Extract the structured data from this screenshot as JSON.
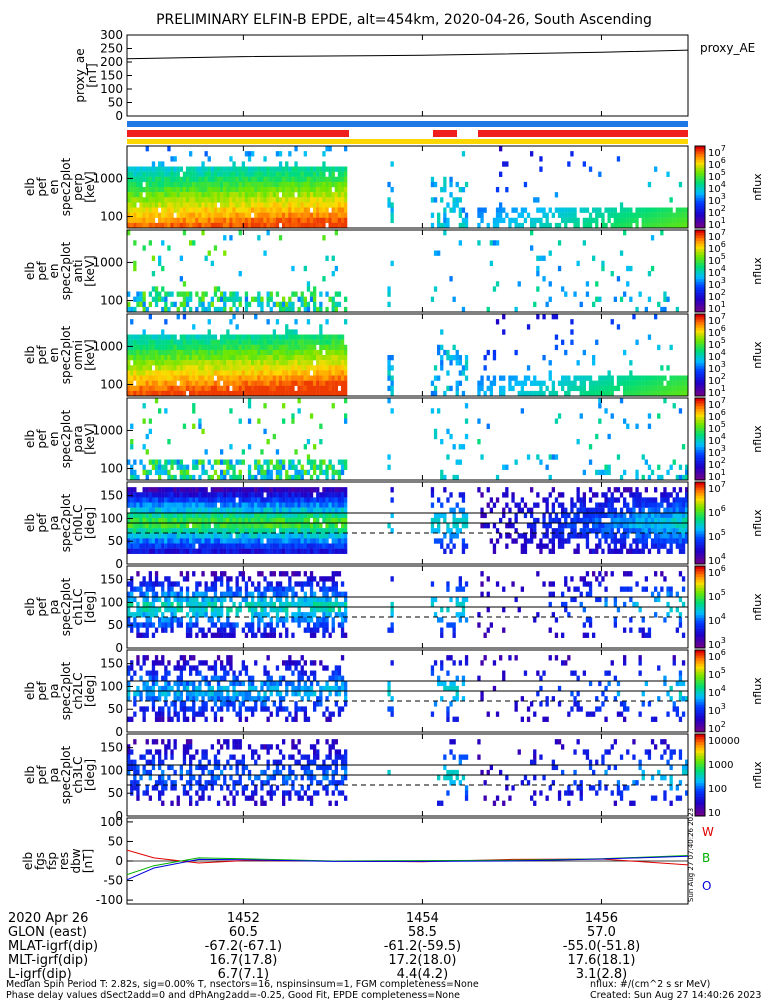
{
  "title": "PRELIMINARY ELFIN-B EPDE, alt=454km, 2020-04-26, South Ascending",
  "colors": {
    "bar_blue": "#1e78e6",
    "bar_red": "#f01e1e",
    "bar_yellow": "#ffd700",
    "trace_red": "#e00000",
    "trace_green": "#00b000",
    "trace_blue": "#0000e0"
  },
  "chart_data": [
    {
      "type": "line",
      "panel": "proxy_ae",
      "ylabel_lines": [
        "proxy_ae",
        "[nT]"
      ],
      "ylim": [
        0,
        300
      ],
      "yticks": [
        "300",
        "250",
        "200",
        "150",
        "100",
        "50",
        "0"
      ],
      "legend": "proxy_AE",
      "x": [
        "14:50:42",
        "14:52:00",
        "14:54:00",
        "14:56:00",
        "14:56:58"
      ],
      "y": [
        212,
        220,
        225,
        236,
        244
      ]
    },
    {
      "type": "heatmap",
      "panel": "pef_en_perp",
      "ylabel_lines": [
        "elb",
        "pef",
        "en",
        "spec2plot",
        "perp",
        "[keV]"
      ],
      "yscale": "log",
      "ytick_labels": [
        "1000",
        "100"
      ],
      "colorbar": {
        "label": "nflux",
        "ticks": [
          "10^7",
          "10^6",
          "10^5",
          "10^4",
          "10^3",
          "10^2",
          "10^1"
        ]
      }
    },
    {
      "type": "heatmap",
      "panel": "pef_en_anti",
      "ylabel_lines": [
        "elb",
        "pef",
        "en",
        "spec2plot",
        "anti",
        "[keV]"
      ],
      "yscale": "log",
      "ytick_labels": [
        "1000",
        "100"
      ],
      "colorbar": {
        "label": "nflux",
        "ticks": [
          "10^7",
          "10^6",
          "10^5",
          "10^4",
          "10^3",
          "10^2",
          "10^1"
        ]
      }
    },
    {
      "type": "heatmap",
      "panel": "pef_en_omni",
      "ylabel_lines": [
        "elb",
        "pef",
        "en",
        "spec2plot",
        "omni",
        "[keV]"
      ],
      "yscale": "log",
      "ytick_labels": [
        "1000",
        "100"
      ],
      "colorbar": {
        "label": "nflux",
        "ticks": [
          "10^7",
          "10^6",
          "10^5",
          "10^4",
          "10^3",
          "10^2",
          "10^1"
        ]
      }
    },
    {
      "type": "heatmap",
      "panel": "pef_en_para",
      "ylabel_lines": [
        "elb",
        "pef",
        "en",
        "spec2plot",
        "para",
        "[keV]"
      ],
      "yscale": "log",
      "ytick_labels": [
        "1000",
        "100"
      ],
      "colorbar": {
        "label": "nflux",
        "ticks": [
          "10^7",
          "10^6",
          "10^5",
          "10^4",
          "10^3",
          "10^2",
          "10^1"
        ]
      }
    },
    {
      "type": "heatmap",
      "panel": "pef_pa_ch0LC",
      "ylabel_lines": [
        "elb",
        "pef",
        "pa",
        "spec2plot",
        "ch0LC",
        "[deg]"
      ],
      "ylim": [
        0,
        180
      ],
      "yticks": [
        "150",
        "100",
        "50",
        "0"
      ],
      "lines_deg": [
        112,
        90
      ],
      "dashed_deg": 68,
      "colorbar": {
        "label": "nflux",
        "ticks": [
          "10^7",
          "10^6",
          "10^5",
          "10^4"
        ]
      }
    },
    {
      "type": "heatmap",
      "panel": "pef_pa_ch1LC",
      "ylabel_lines": [
        "elb",
        "pef",
        "pa",
        "spec2plot",
        "ch1LC",
        "[deg]"
      ],
      "ylim": [
        0,
        180
      ],
      "yticks": [
        "150",
        "100",
        "50",
        "0"
      ],
      "lines_deg": [
        112,
        90
      ],
      "dashed_deg": 68,
      "colorbar": {
        "label": "nflux",
        "ticks": [
          "10^6",
          "10^5",
          "10^4",
          "10^3"
        ]
      }
    },
    {
      "type": "heatmap",
      "panel": "pef_pa_ch2LC",
      "ylabel_lines": [
        "elb",
        "pef",
        "pa",
        "spec2plot",
        "ch2LC",
        "[deg]"
      ],
      "ylim": [
        0,
        180
      ],
      "yticks": [
        "150",
        "100",
        "50",
        "0"
      ],
      "lines_deg": [
        112,
        90
      ],
      "dashed_deg": 68,
      "colorbar": {
        "label": "nflux",
        "ticks": [
          "10^6",
          "10^5",
          "10^4",
          "10^3",
          "10^2"
        ]
      }
    },
    {
      "type": "heatmap",
      "panel": "pef_pa_ch3LC",
      "ylabel_lines": [
        "elb",
        "pef",
        "pa",
        "spec2plot",
        "ch3LC",
        "[deg]"
      ],
      "ylim": [
        0,
        180
      ],
      "yticks": [
        "150",
        "100",
        "50",
        "0"
      ],
      "lines_deg": [
        112,
        90
      ],
      "dashed_deg": 68,
      "colorbar": {
        "label": "nflux",
        "ticks": [
          "10000",
          "1000",
          "100",
          "10"
        ]
      }
    },
    {
      "type": "line",
      "panel": "fgs_res_dbw",
      "ylabel_lines": [
        "elb",
        "fgs",
        "fsp",
        "res",
        "dbw",
        "[nT]"
      ],
      "ylim": [
        -110,
        110
      ],
      "yticks": [
        "100",
        "50",
        "0",
        "-50",
        "-100"
      ],
      "legend": [
        "W",
        "B",
        "O"
      ],
      "side_note": "Sun Aug 27 07:40:26 2023",
      "x": [
        "14:50:42",
        "14:51:00",
        "14:51:30",
        "14:52:00",
        "14:53:00",
        "14:54:00",
        "14:55:00",
        "14:56:00",
        "14:56:58"
      ],
      "series": [
        {
          "name": "W",
          "values": [
            28,
            8,
            -5,
            1,
            0,
            -2,
            4,
            5,
            -10
          ]
        },
        {
          "name": "B",
          "values": [
            -35,
            -12,
            8,
            6,
            0,
            1,
            2,
            6,
            14
          ]
        },
        {
          "name": "O",
          "values": [
            -48,
            -18,
            4,
            3,
            -1,
            -1,
            0,
            5,
            12
          ]
        }
      ]
    }
  ],
  "xaxis": {
    "ticks": [
      "1452",
      "1454",
      "1456"
    ],
    "rows": [
      {
        "label": "2020 Apr 26",
        "values": [
          "1452",
          "1454",
          "1456"
        ]
      },
      {
        "label": "GLON (east)",
        "values": [
          "60.5",
          "58.5",
          "57.0"
        ]
      },
      {
        "label": "MLAT-igrf(dip)",
        "values": [
          "-67.2(-67.1)",
          "-61.2(-59.5)",
          "-55.0(-51.8)"
        ]
      },
      {
        "label": "MLT-igrf(dip)",
        "values": [
          "16.7(17.8)",
          "17.2(18.0)",
          "17.6(18.1)"
        ]
      },
      {
        "label": "L-igrf(dip)",
        "values": [
          "6.7(7.1)",
          "4.4(4.2)",
          "3.1(2.8)"
        ]
      }
    ]
  },
  "footer": {
    "left1": "Median Spin Period T: 2.82s, sig=0.00% T, nsectors=16, nspinsinsum=1, FGM completeness=None",
    "left2": "Phase delay values dSect2add=0 and dPhAng2add=-0.25, Good Fit, EPDE completeness=None",
    "right1": "nflux: #/(cm^2 s sr MeV)",
    "right2": "Created: Sun Aug 27 14:40:26 2023"
  }
}
